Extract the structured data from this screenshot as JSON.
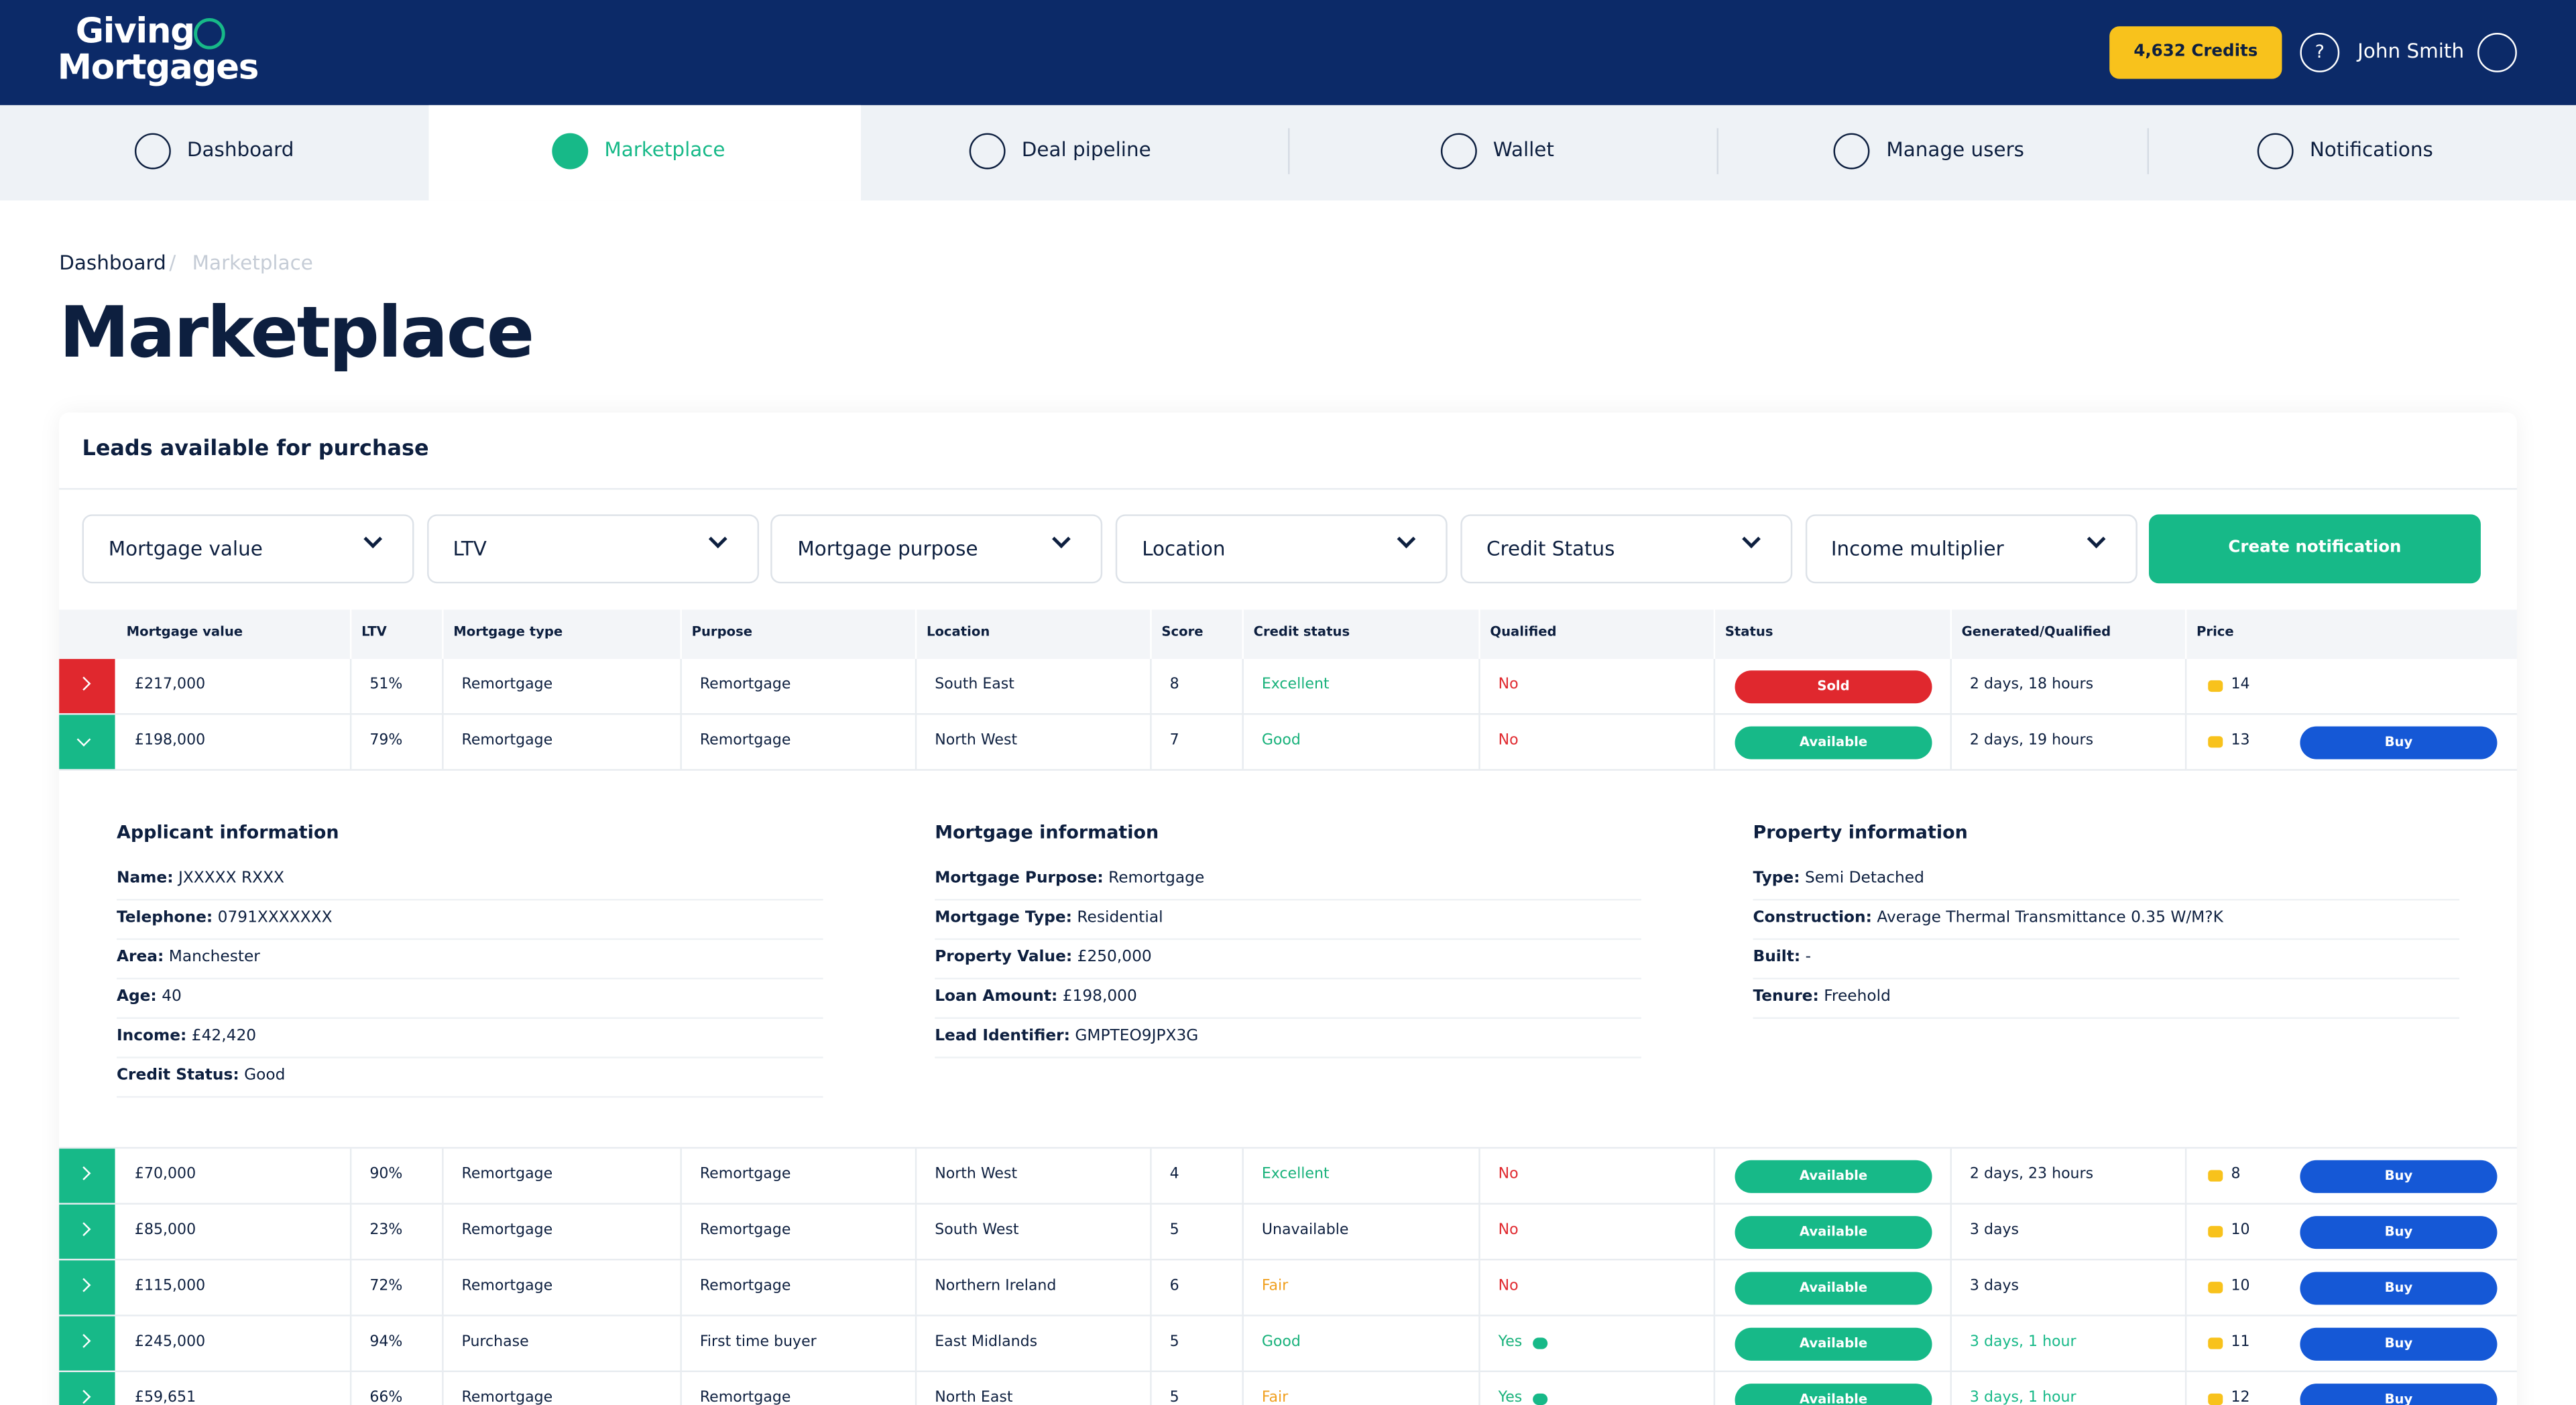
{
  "header": {
    "logo": [
      "Giving",
      "Mortgages"
    ],
    "credits": "4,632 Credits",
    "help": "?",
    "user": "John Smith"
  },
  "nav": [
    "Dashboard",
    "Marketplace",
    "Deal pipeline",
    "Wallet",
    "Manage users",
    "Notifications"
  ],
  "active_nav": 1,
  "breadcrumb": [
    "Dashboard",
    "Marketplace"
  ],
  "title": "Marketplace",
  "panel": {
    "title": "Leads available for purchase",
    "filters": [
      "Mortgage value",
      "LTV",
      "Mortgage purpose",
      "Location",
      "Credit Status",
      "Income multiplier"
    ],
    "button": "Create notification"
  },
  "table": {
    "columns": [
      "Mortgage value",
      "LTV",
      "Mortgage type",
      "Purpose",
      "Location",
      "Score",
      "Credit status",
      "Qualified",
      "Status",
      "Generated/Qualified",
      "Price"
    ],
    "tones": {
      "Excellent": "#17b17a",
      "Good": "#17b17a",
      "Fair": "#f0a020",
      "No": "#e0282e",
      "Yes": "#17b17a",
      "Sold": "#e0282e",
      "Available": "#17b988"
    },
    "rows": [
      {
        "cells": [
          "£217,000",
          "51%",
          "Remortgage",
          "Remortgage",
          "South East",
          "8",
          "Excellent",
          "No",
          "Sold",
          "2 days, 18 hours",
          "14"
        ],
        "action": null,
        "expanded": false,
        "fresh": false
      },
      {
        "cells": [
          "£198,000",
          "79%",
          "Remortgage",
          "Remortgage",
          "North West",
          "7",
          "Good",
          "No",
          "Available",
          "2 days, 19 hours",
          "13"
        ],
        "action": "Buy",
        "expanded": true,
        "fresh": false
      },
      {
        "cells": [
          "£70,000",
          "90%",
          "Remortgage",
          "Remortgage",
          "North West",
          "4",
          "Excellent",
          "No",
          "Available",
          "2 days, 23 hours",
          "8"
        ],
        "action": "Buy",
        "expanded": false,
        "fresh": false
      },
      {
        "cells": [
          "£85,000",
          "23%",
          "Remortgage",
          "Remortgage",
          "South West",
          "5",
          "Unavailable",
          "No",
          "Available",
          "3 days",
          "10"
        ],
        "action": "Buy",
        "expanded": false,
        "fresh": false
      },
      {
        "cells": [
          "£115,000",
          "72%",
          "Remortgage",
          "Remortgage",
          "Northern Ireland",
          "6",
          "Fair",
          "No",
          "Available",
          "3 days",
          "10"
        ],
        "action": "Buy",
        "expanded": false,
        "fresh": false
      },
      {
        "cells": [
          "£245,000",
          "94%",
          "Purchase",
          "First time buyer",
          "East Midlands",
          "5",
          "Good",
          "Yes",
          "Available",
          "3 days, 1 hour",
          "11"
        ],
        "action": "Buy",
        "expanded": false,
        "fresh": true
      },
      {
        "cells": [
          "£59,651",
          "66%",
          "Remortgage",
          "Remortgage",
          "North East",
          "5",
          "Fair",
          "Yes",
          "Available",
          "3 days, 1 hour",
          "12"
        ],
        "action": "Buy",
        "expanded": false,
        "fresh": true
      }
    ]
  },
  "details": [
    {
      "title": "Applicant information",
      "items": [
        {
          "label": "Name:",
          "value": "JXXXXX RXXX"
        },
        {
          "label": "Telephone:",
          "value": "0791XXXXXXX"
        },
        {
          "label": "Area:",
          "value": "Manchester"
        },
        {
          "label": "Age:",
          "value": "40"
        },
        {
          "label": "Income:",
          "value": "£42,420"
        },
        {
          "label": "Credit Status:",
          "value": "Good"
        }
      ]
    },
    {
      "title": "Mortgage information",
      "items": [
        {
          "label": "Mortgage Purpose:",
          "value": "Remortgage"
        },
        {
          "label": "Mortgage Type:",
          "value": "Residential"
        },
        {
          "label": "Property Value:",
          "value": "£250,000"
        },
        {
          "label": "Loan Amount:",
          "value": "£198,000"
        },
        {
          "label": "Lead Identifier:",
          "value": "GMPTEO9JPX3G"
        }
      ]
    },
    {
      "title": "Property information",
      "items": [
        {
          "label": "Type:",
          "value": "Semi Detached"
        },
        {
          "label": "Construction:",
          "value": "Average Thermal Transmittance 0.35 W/M?K"
        },
        {
          "label": "Built:",
          "value": "-"
        },
        {
          "label": "Tenure:",
          "value": "Freehold"
        }
      ]
    }
  ]
}
